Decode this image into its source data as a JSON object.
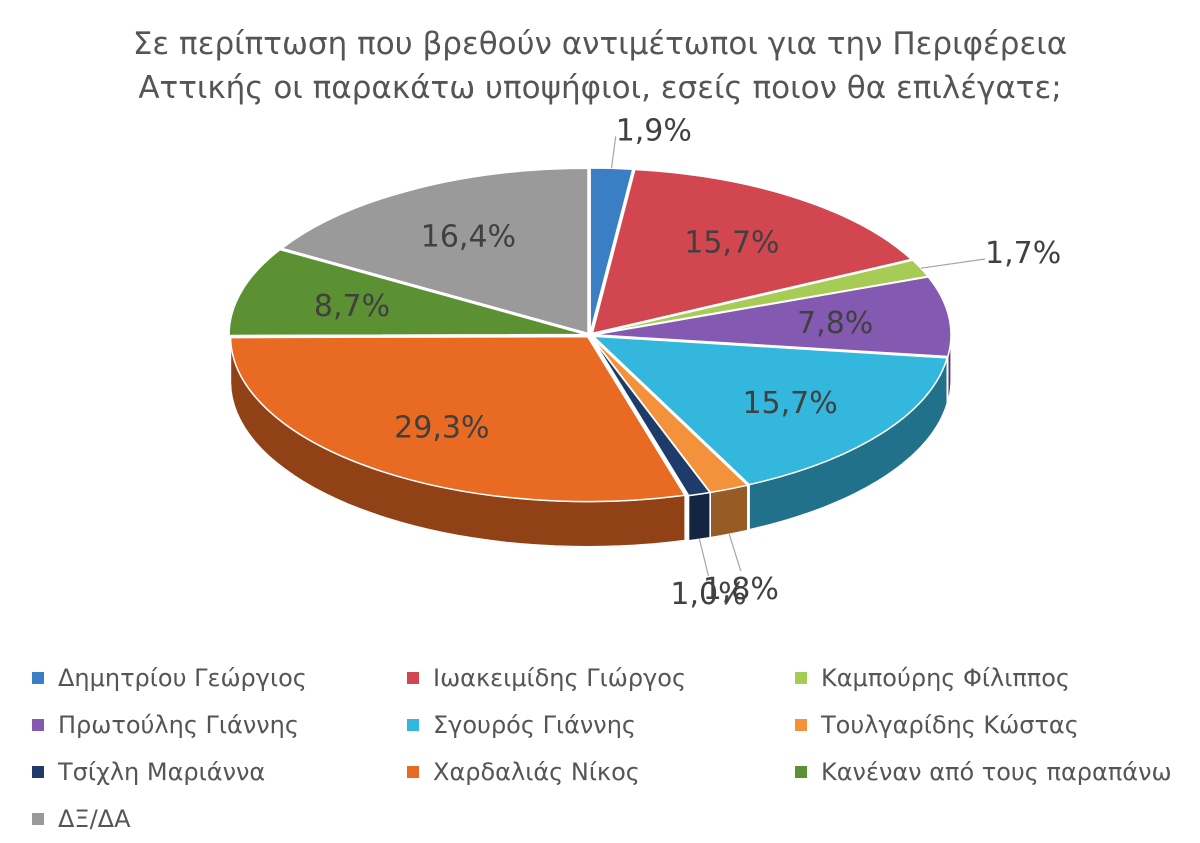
{
  "chart_data": {
    "type": "pie",
    "title_lines": [
      "Σε περίπτωση που βρεθούν αντιμέτωποι για την Περιφέρεια",
      "Αττικής οι παρακάτω υποψήφιοι, εσείς ποιον θα επιλέγατε;"
    ],
    "style": "3d-exploded-pie",
    "legend_position": "bottom",
    "slices": [
      {
        "name": "Δημητρίου Γεώργιος",
        "value": 1.9,
        "label": "1,9%",
        "color": "#3a7fc4"
      },
      {
        "name": "Ιωακειμίδης Γιώργος",
        "value": 15.7,
        "label": "15,7%",
        "color": "#d2464f"
      },
      {
        "name": "Καμπούρης Φίλιππος",
        "value": 1.7,
        "label": "1,7%",
        "color": "#a7cc56"
      },
      {
        "name": "Πρωτούλης Γιάννης",
        "value": 7.8,
        "label": "7,8%",
        "color": "#8459b2"
      },
      {
        "name": "Σγουρός Γιάννης",
        "value": 15.7,
        "label": "15,7%",
        "color": "#34b7dd"
      },
      {
        "name": "Τουλγαρίδης Κώστας",
        "value": 1.8,
        "label": "1,8%",
        "color": "#f4923b"
      },
      {
        "name": "Τσίχλη Μαριάννα",
        "value": 1.0,
        "label": "1,0%",
        "color": "#1e3c69"
      },
      {
        "name": "Χαρδαλιάς Νίκος",
        "value": 29.3,
        "label": "29,3%",
        "color": "#e86a23"
      },
      {
        "name": "Κανέναν από τους παραπάνω",
        "value": 8.7,
        "label": "8,7%",
        "color": "#5b9132"
      },
      {
        "name": "ΔΞ/ΔΑ",
        "value": 16.4,
        "label": "16,4%",
        "color": "#9a9a9a"
      }
    ]
  }
}
